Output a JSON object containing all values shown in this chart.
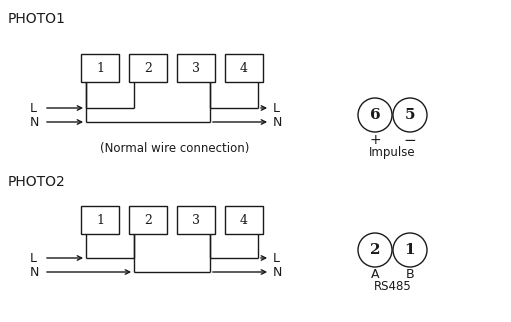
{
  "bg_color": "#ffffff",
  "line_color": "#1a1a1a",
  "text_color": "#1a1a1a",
  "photo1_label": "PHOTO1",
  "photo2_label": "PHOTO2",
  "normal_wire_label": "(Normal wire connection)",
  "impulse_label": "Impulse",
  "rs485_label": "RS485",
  "plus_label": "+",
  "minus_label": "−",
  "A_label": "A",
  "B_label": "B",
  "circle6": "6",
  "circle5": "5",
  "circle2": "2",
  "circle1": "1",
  "box_labels": [
    "1",
    "2",
    "3",
    "4"
  ],
  "figw": 5.11,
  "figh": 3.22,
  "dpi": 100
}
